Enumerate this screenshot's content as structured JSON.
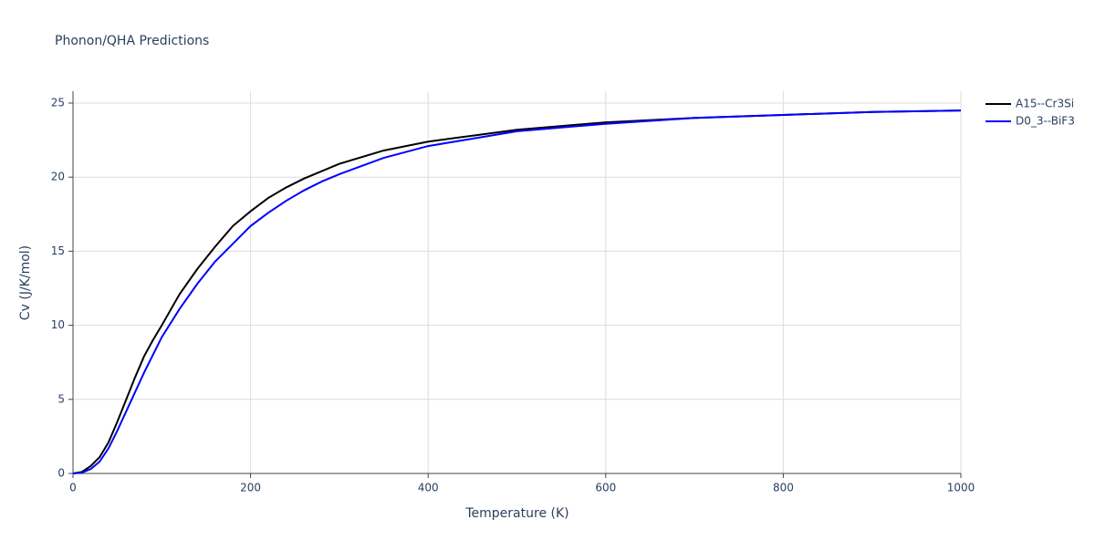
{
  "chart_data": {
    "type": "line",
    "title": "Phonon/QHA Predictions",
    "x_label": "Temperature (K)",
    "y_label": "Cv (J/K/mol)",
    "x": [
      0,
      10,
      20,
      30,
      40,
      50,
      60,
      70,
      80,
      90,
      100,
      120,
      140,
      160,
      180,
      200,
      220,
      240,
      260,
      280,
      300,
      350,
      400,
      450,
      500,
      600,
      700,
      800,
      900,
      1000
    ],
    "series": [
      {
        "name": "A15--Cr3Si",
        "color": "#000000",
        "values": [
          0,
          0.1,
          0.5,
          1.1,
          2.1,
          3.5,
          5.0,
          6.5,
          7.9,
          9.0,
          10.0,
          12.1,
          13.8,
          15.3,
          16.7,
          17.7,
          18.6,
          19.3,
          19.9,
          20.4,
          20.9,
          21.8,
          22.4,
          22.8,
          23.2,
          23.7,
          24.0,
          24.2,
          24.4,
          24.5
        ]
      },
      {
        "name": "D0_3--BiF3",
        "color": "#0000ff",
        "values": [
          0,
          0.05,
          0.3,
          0.8,
          1.7,
          2.9,
          4.2,
          5.5,
          6.8,
          8.0,
          9.2,
          11.1,
          12.8,
          14.3,
          15.5,
          16.7,
          17.6,
          18.4,
          19.1,
          19.7,
          20.2,
          21.3,
          22.1,
          22.6,
          23.1,
          23.6,
          24.0,
          24.2,
          24.4,
          24.5
        ]
      }
    ],
    "xlim": [
      0,
      1000
    ],
    "xticks": [
      0,
      200,
      400,
      600,
      800,
      1000
    ],
    "ylim": [
      0,
      25.8
    ],
    "yticks": [
      0,
      5,
      10,
      15,
      20,
      25
    ],
    "grid": true,
    "legend": "right"
  }
}
